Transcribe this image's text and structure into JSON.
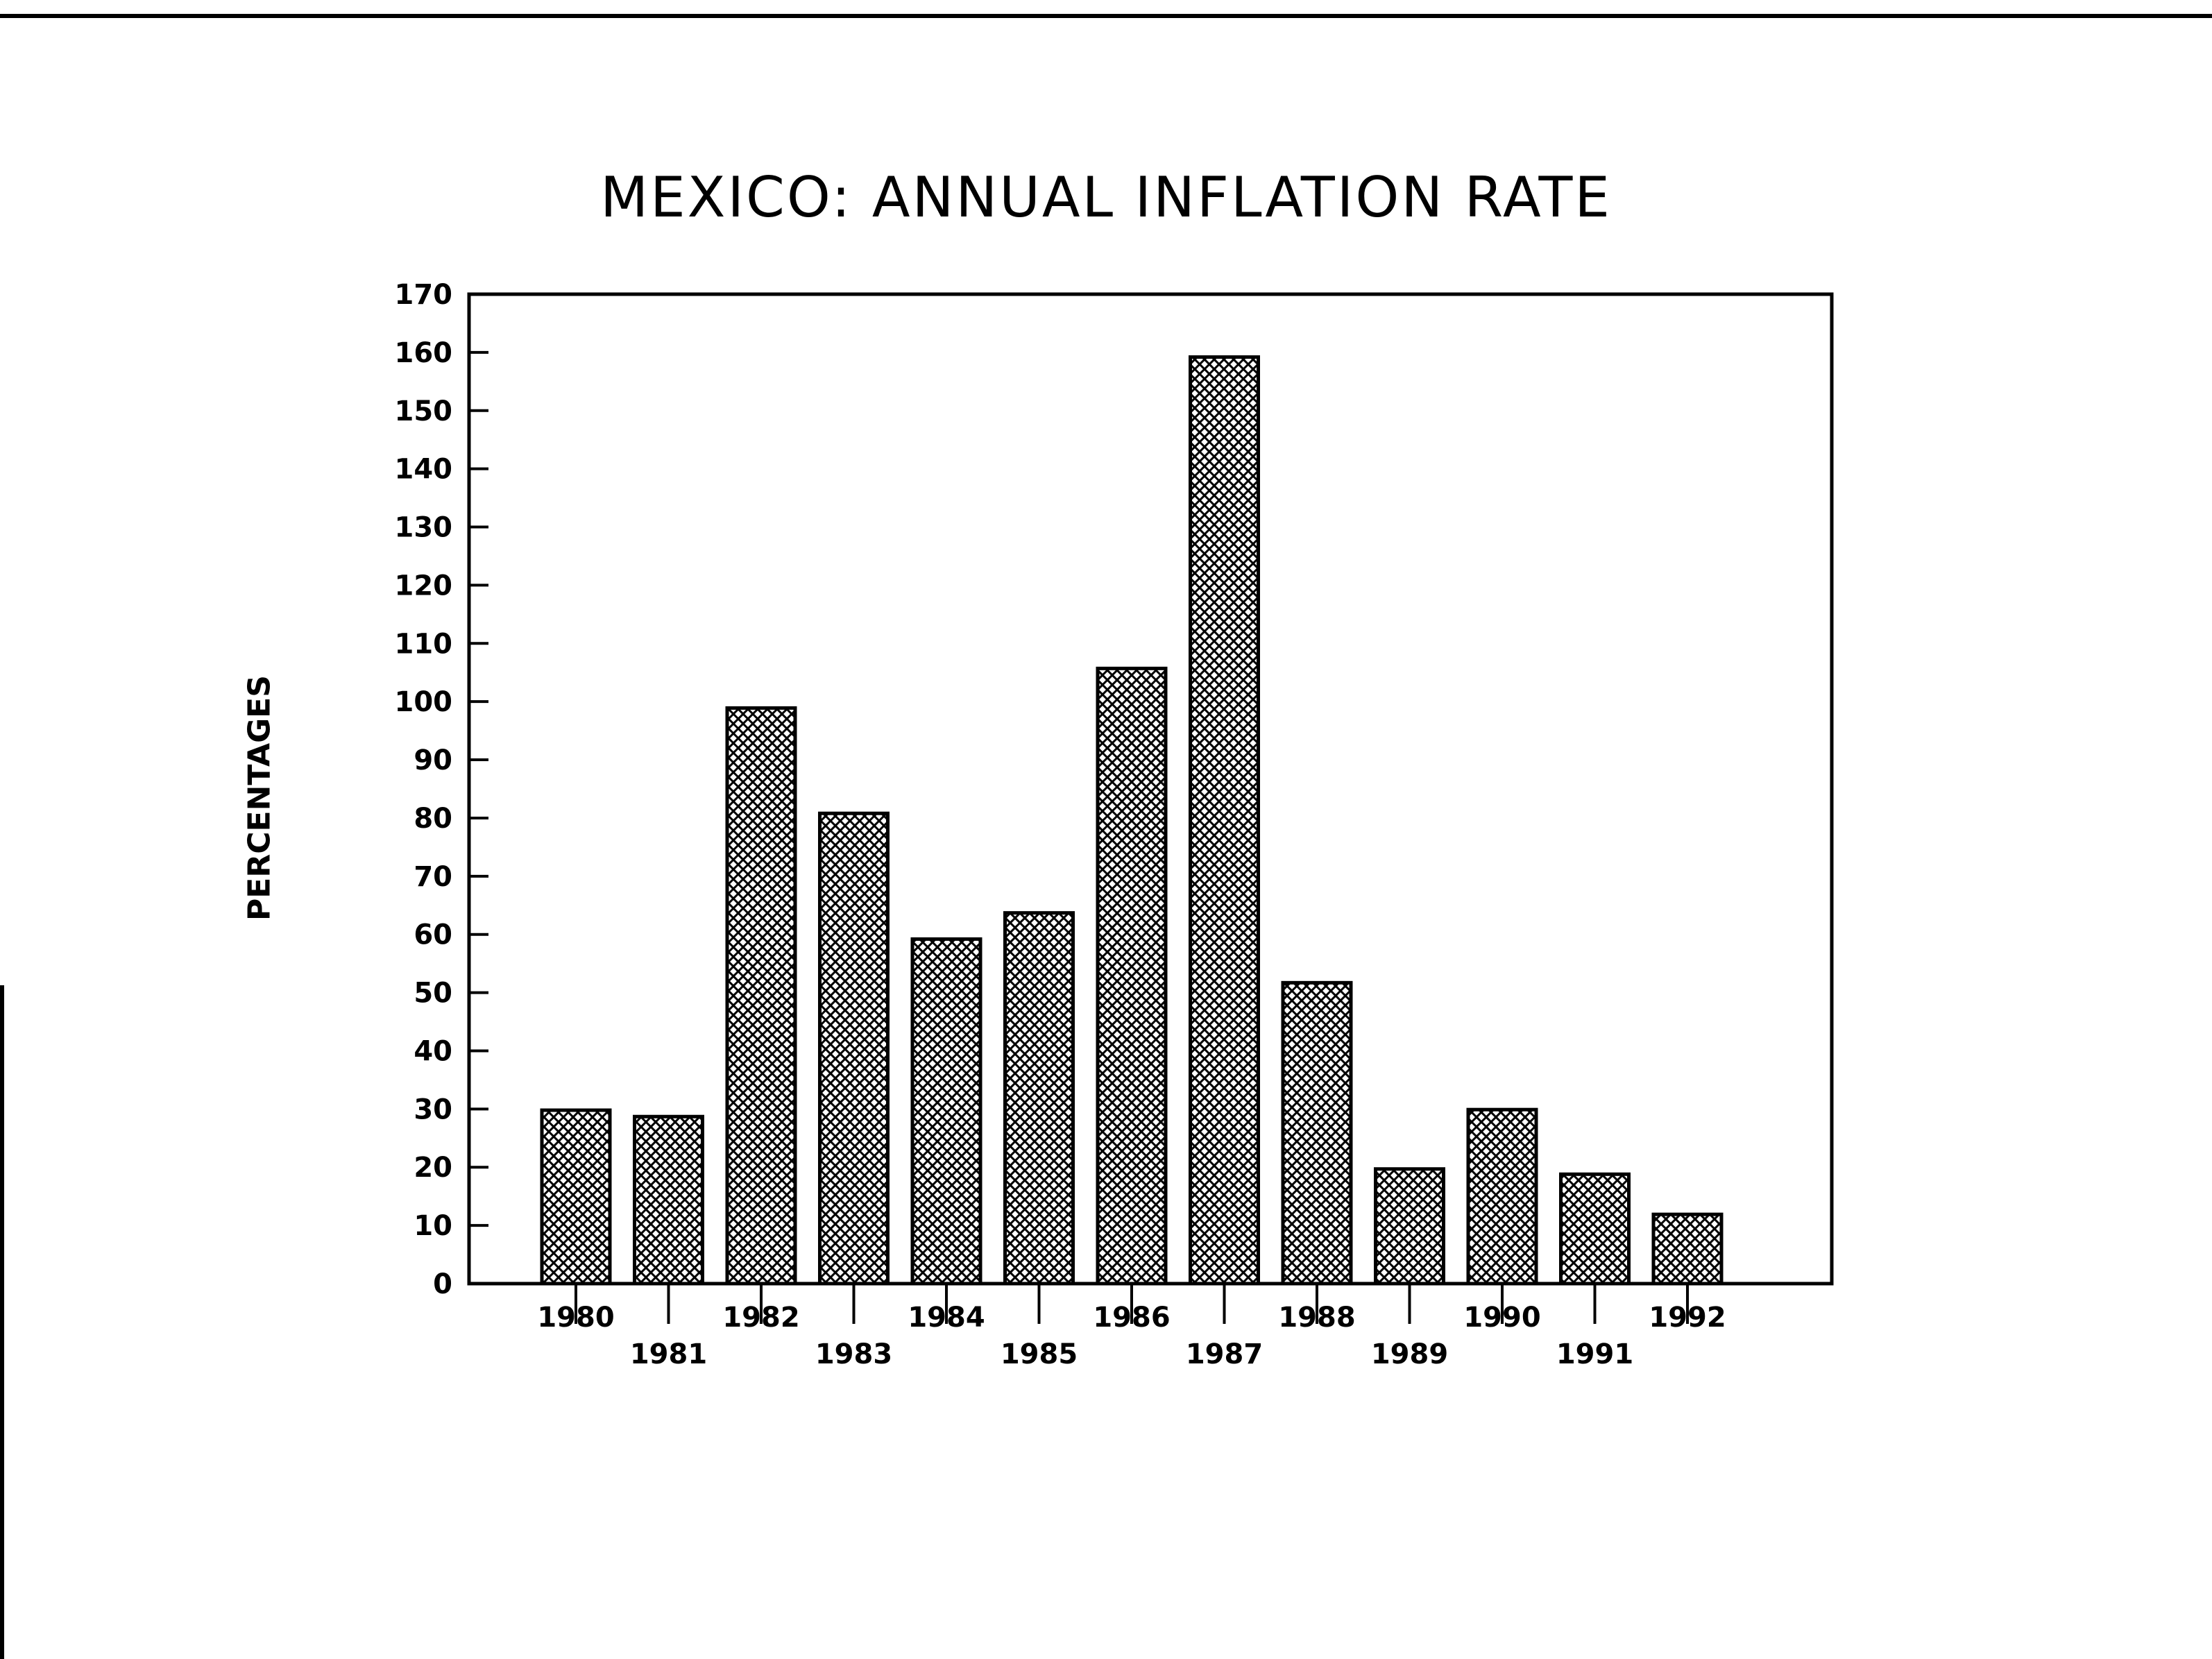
{
  "chart_data": {
    "type": "bar",
    "title": "MEXICO: ANNUAL INFLATION RATE",
    "xlabel": "",
    "ylabel": "PERCENTAGES",
    "categories": [
      "1980",
      "1981",
      "1982",
      "1983",
      "1984",
      "1985",
      "1986",
      "1987",
      "1988",
      "1989",
      "1990",
      "1991",
      "1992"
    ],
    "values": [
      29.8,
      28.7,
      98.9,
      80.8,
      59.2,
      63.7,
      105.7,
      159.2,
      51.7,
      19.7,
      29.9,
      18.8,
      11.9
    ],
    "ylim": [
      0,
      170
    ],
    "yticks": [
      0,
      10,
      20,
      30,
      40,
      50,
      60,
      70,
      80,
      90,
      100,
      110,
      120,
      130,
      140,
      150,
      160,
      170
    ],
    "bar_fill": "crosshatch",
    "grid": false,
    "legend": "none"
  }
}
